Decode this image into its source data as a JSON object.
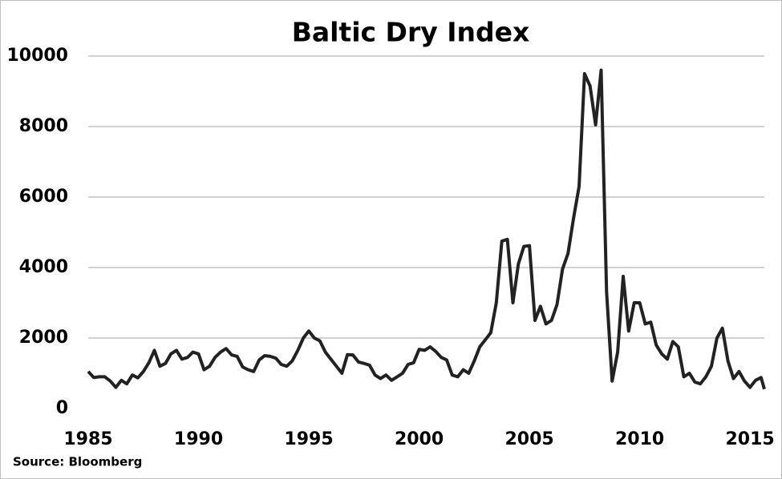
{
  "chart_data": {
    "type": "line",
    "title": "Baltic Dry Index",
    "source": "Source: Bloomberg",
    "x": [
      1985,
      1985.25,
      1985.5,
      1985.75,
      1986,
      1986.25,
      1986.5,
      1986.75,
      1987,
      1987.25,
      1987.5,
      1987.75,
      1988,
      1988.25,
      1988.5,
      1988.75,
      1989,
      1989.25,
      1989.5,
      1989.75,
      1990,
      1990.25,
      1990.5,
      1990.75,
      1991,
      1991.25,
      1991.5,
      1991.75,
      1992,
      1992.25,
      1992.5,
      1992.75,
      1993,
      1993.25,
      1993.5,
      1993.75,
      1994,
      1994.25,
      1994.5,
      1994.75,
      1995,
      1995.25,
      1995.5,
      1995.75,
      1996,
      1996.25,
      1996.5,
      1996.75,
      1997,
      1997.25,
      1997.5,
      1997.75,
      1998,
      1998.25,
      1998.5,
      1998.75,
      1999,
      1999.25,
      1999.5,
      1999.75,
      2000,
      2000.25,
      2000.5,
      2000.75,
      2001,
      2001.25,
      2001.5,
      2001.75,
      2002,
      2002.25,
      2002.5,
      2002.75,
      2003,
      2003.25,
      2003.5,
      2003.75,
      2004,
      2004.25,
      2004.5,
      2004.75,
      2005,
      2005.25,
      2005.5,
      2005.75,
      2006,
      2006.25,
      2006.5,
      2006.75,
      2007,
      2007.25,
      2007.5,
      2007.75,
      2008,
      2008.25,
      2008.5,
      2008.75,
      2009,
      2009.25,
      2009.5,
      2009.75,
      2010,
      2010.25,
      2010.5,
      2010.75,
      2011,
      2011.25,
      2011.5,
      2011.75,
      2012,
      2012.25,
      2012.5,
      2012.75,
      2013,
      2013.25,
      2013.5,
      2013.75,
      2014,
      2014.25,
      2014.5,
      2014.75,
      2015,
      2015.25,
      2015.5,
      2015.65
    ],
    "series": [
      {
        "name": "Baltic Dry Index",
        "color": "#222222",
        "values": [
          1050,
          880,
          900,
          900,
          780,
          600,
          800,
          700,
          950,
          870,
          1050,
          1300,
          1650,
          1200,
          1280,
          1550,
          1650,
          1400,
          1450,
          1600,
          1550,
          1100,
          1200,
          1450,
          1600,
          1700,
          1520,
          1480,
          1180,
          1100,
          1050,
          1380,
          1500,
          1480,
          1430,
          1250,
          1200,
          1350,
          1650,
          2000,
          2200,
          2000,
          1920,
          1600,
          1400,
          1200,
          1000,
          1530,
          1520,
          1320,
          1280,
          1230,
          950,
          850,
          950,
          800,
          900,
          1000,
          1250,
          1300,
          1680,
          1650,
          1750,
          1620,
          1450,
          1380,
          950,
          900,
          1100,
          1000,
          1350,
          1750,
          1950,
          2150,
          3000,
          4750,
          4800,
          3000,
          4100,
          4600,
          4620,
          2500,
          2900,
          2400,
          2500,
          2950,
          3950,
          4400,
          5400,
          6300,
          9500,
          9150,
          8050,
          9600,
          3300,
          780,
          1600,
          3750,
          2200,
          3000,
          3000,
          2400,
          2450,
          1800,
          1550,
          1400,
          1900,
          1750,
          900,
          1000,
          750,
          700,
          900,
          1200,
          2000,
          2280,
          1350,
          850,
          1050,
          780,
          600,
          800,
          880,
          550
        ]
      }
    ],
    "xlim": [
      1985,
      2015.65
    ],
    "xticks": [
      1985,
      1990,
      1995,
      2000,
      2005,
      2010,
      2015
    ],
    "ylim": [
      0,
      10000
    ],
    "yticks": [
      0,
      2000,
      4000,
      6000,
      8000,
      10000
    ],
    "grid": true
  }
}
